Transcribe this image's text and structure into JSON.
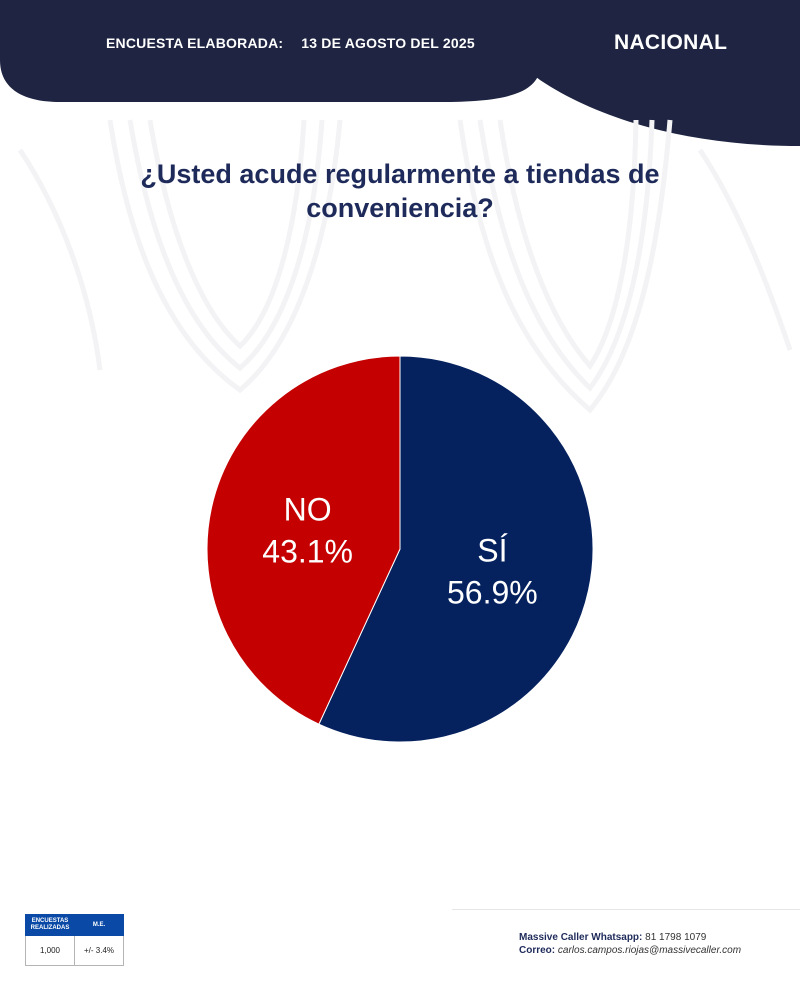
{
  "header": {
    "date_label": "ENCUESTA ELABORADA:",
    "date_value": "13 DE AGOSTO DEL 2025",
    "region": "NACIONAL"
  },
  "colors": {
    "navy": "#1e2441",
    "si": "#05225f",
    "no": "#c40000",
    "title": "#1e2a5a",
    "table_header": "#0a4aa6"
  },
  "chart_data": {
    "type": "pie",
    "title": "¿Usted acude regularmente a tiendas de conveniencia?",
    "slices": [
      {
        "label": "SÍ",
        "value": 56.9,
        "display": "56.9%",
        "color": "#05225f"
      },
      {
        "label": "NO",
        "value": 43.1,
        "display": "43.1%",
        "color": "#c40000"
      }
    ],
    "start_angle_deg": 0,
    "direction": "clockwise"
  },
  "stats": {
    "col1_header_line1": "ENCUESTAS",
    "col1_header_line2": "REALIZADAS",
    "col2_header": "M.E.",
    "col1_value": "1,000",
    "col2_value": "+/- 3.4%"
  },
  "contact": {
    "whatsapp_label": "Massive Caller Whatsapp:",
    "whatsapp_value": "81 1798 1079",
    "email_label": "Correo:",
    "email_value": "carlos.campos.riojas@massivecaller.com"
  }
}
